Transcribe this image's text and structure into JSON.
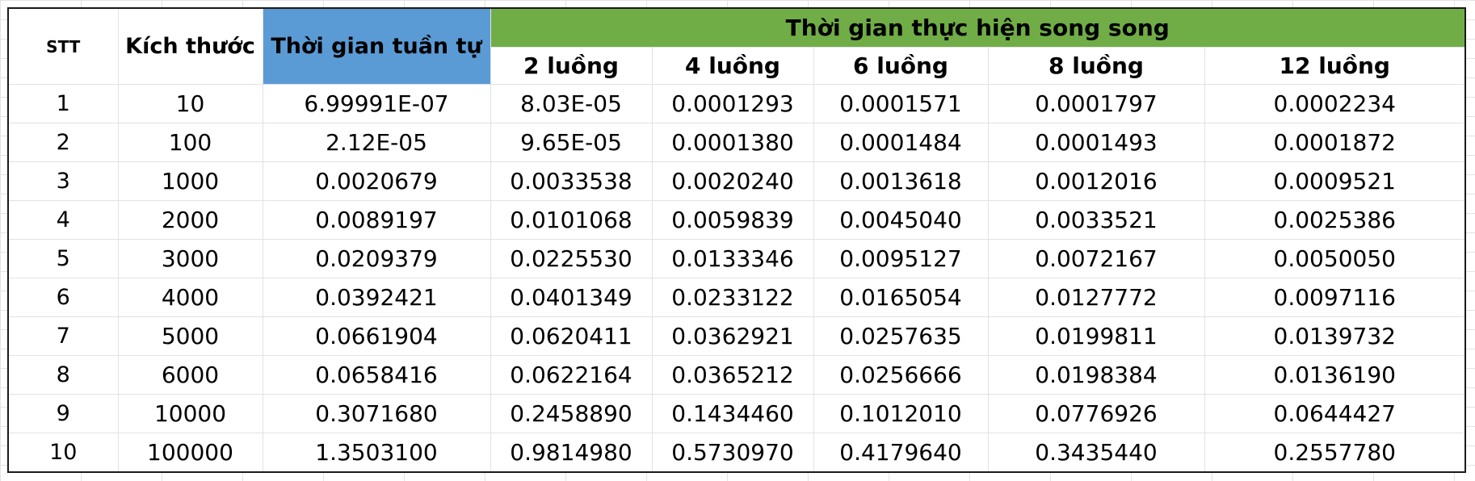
{
  "table": {
    "headers": {
      "stt": "STT",
      "size": "Kích thước",
      "sequential": "Thời gian tuần tự",
      "parallel": "Thời gian thực hiện song song",
      "threads": [
        "2 luồng",
        "4 luồng",
        "6 luồng",
        "8 luồng",
        "12 luồng"
      ]
    },
    "colors": {
      "sequential_header_bg": "#5b9bd5",
      "parallel_header_bg": "#70ad47"
    },
    "rows": [
      [
        "1",
        "10",
        "6.99991E-07",
        "8.03E-05",
        "0.0001293",
        "0.0001571",
        "0.0001797",
        "0.0002234"
      ],
      [
        "2",
        "100",
        "2.12E-05",
        "9.65E-05",
        "0.0001380",
        "0.0001484",
        "0.0001493",
        "0.0001872"
      ],
      [
        "3",
        "1000",
        "0.0020679",
        "0.0033538",
        "0.0020240",
        "0.0013618",
        "0.0012016",
        "0.0009521"
      ],
      [
        "4",
        "2000",
        "0.0089197",
        "0.0101068",
        "0.0059839",
        "0.0045040",
        "0.0033521",
        "0.0025386"
      ],
      [
        "5",
        "3000",
        "0.0209379",
        "0.0225530",
        "0.0133346",
        "0.0095127",
        "0.0072167",
        "0.0050050"
      ],
      [
        "6",
        "4000",
        "0.0392421",
        "0.0401349",
        "0.0233122",
        "0.0165054",
        "0.0127772",
        "0.0097116"
      ],
      [
        "7",
        "5000",
        "0.0661904",
        "0.0620411",
        "0.0362921",
        "0.0257635",
        "0.0199811",
        "0.0139732"
      ],
      [
        "8",
        "6000",
        "0.0658416",
        "0.0622164",
        "0.0365212",
        "0.0256666",
        "0.0198384",
        "0.0136190"
      ],
      [
        "9",
        "10000",
        "0.3071680",
        "0.2458890",
        "0.1434460",
        "0.1012010",
        "0.0776926",
        "0.0644427"
      ],
      [
        "10",
        "100000",
        "1.3503100",
        "0.9814980",
        "0.5730970",
        "0.4179640",
        "0.3435440",
        "0.2557780"
      ]
    ]
  }
}
